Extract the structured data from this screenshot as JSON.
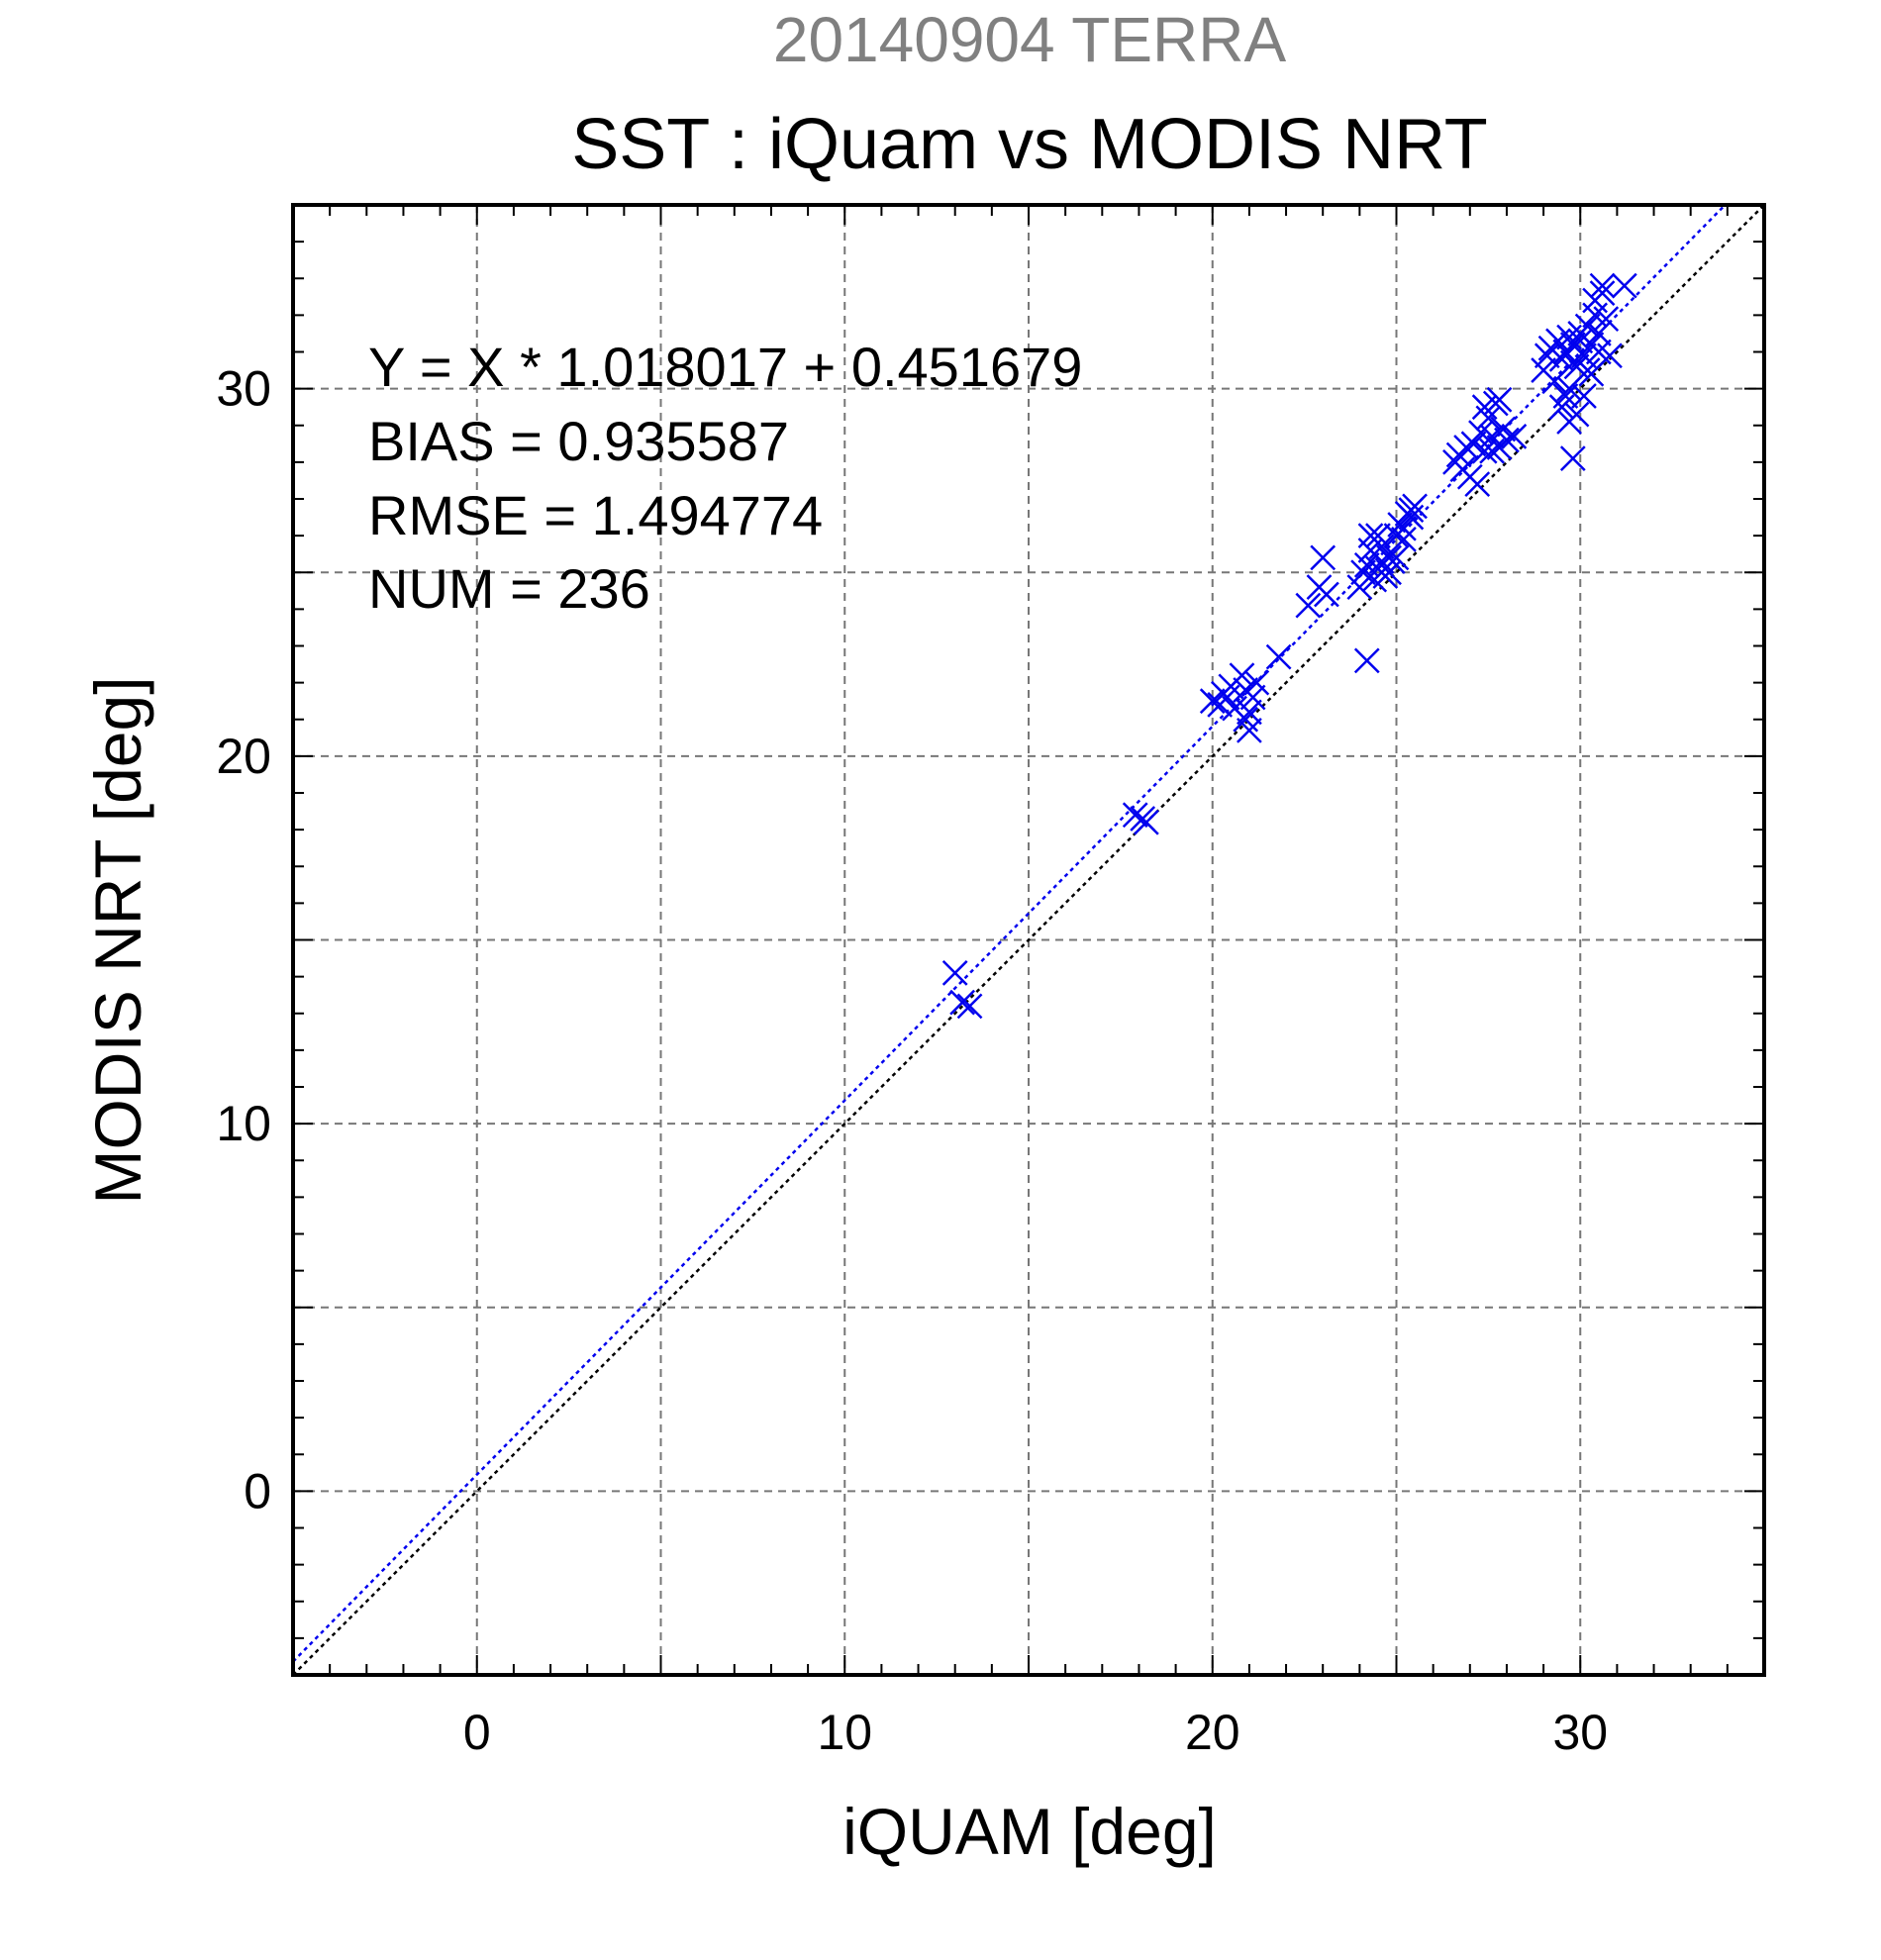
{
  "chart_data": {
    "type": "scatter",
    "supertitle": "20140904 TERRA",
    "title": "SST : iQuam vs MODIS NRT",
    "xlabel": "iQUAM [deg]",
    "ylabel": "MODIS NRT [deg]",
    "xlim": [
      -5,
      35
    ],
    "ylim": [
      -5,
      35
    ],
    "x_ticks": [
      0,
      10,
      20,
      30
    ],
    "y_ticks": [
      0,
      10,
      20,
      30
    ],
    "x_tick_labels": [
      "0",
      "10",
      "20",
      "30"
    ],
    "y_tick_labels": [
      "0",
      "10",
      "20",
      "30"
    ],
    "grid": true,
    "grid_step": 5,
    "marker": "x",
    "marker_color": "#0000ee",
    "stats": [
      "Y = X * 1.018017 + 0.451679",
      "BIAS = 0.935587",
      "RMSE = 1.494774",
      "NUM = 236"
    ],
    "fit_line": {
      "slope": 1.018017,
      "intercept": 0.451679,
      "color": "#0000ee"
    },
    "identity_line": {
      "slope": 1,
      "intercept": 0,
      "color": "#000000"
    },
    "series": [
      {
        "x": [
          13.0,
          13.2,
          13.4,
          17.9,
          18.1,
          18.2,
          20.0,
          20.2,
          20.3,
          20.4,
          20.5,
          20.6,
          20.8,
          20.9,
          21.0,
          21.1,
          21.2,
          20.9,
          21.0,
          21.8,
          22.6,
          22.9,
          23.0,
          23.1,
          24.0,
          24.1,
          24.2,
          24.3,
          24.4,
          24.5,
          24.6,
          24.7,
          24.8,
          24.2,
          24.3,
          24.5,
          24.6,
          24.9,
          25.0,
          25.1,
          25.2,
          25.3,
          25.4,
          25.5,
          25.0,
          25.2,
          25.4,
          24.8,
          26.6,
          26.7,
          26.8,
          26.9,
          27.0,
          27.1,
          27.2,
          27.3,
          27.4,
          27.5,
          27.6,
          27.7,
          27.8,
          27.9,
          28.0,
          28.2,
          27.4,
          27.6,
          27.8,
          29.0,
          29.1,
          29.2,
          29.3,
          29.4,
          29.5,
          29.6,
          29.7,
          29.8,
          29.9,
          30.0,
          30.1,
          30.2,
          30.3,
          30.4,
          30.5,
          30.6,
          30.7,
          30.8,
          29.5,
          29.7,
          29.9,
          30.1,
          30.3,
          29.6,
          29.8,
          30.0,
          30.2,
          29.8,
          30.4,
          30.6,
          30.5,
          31.2,
          29.7,
          29.6
        ],
        "y": [
          14.1,
          13.3,
          13.2,
          18.4,
          18.3,
          18.2,
          21.5,
          21.4,
          21.7,
          21.6,
          21.9,
          21.3,
          22.2,
          21.0,
          20.7,
          21.6,
          22.0,
          21.8,
          21.2,
          22.7,
          24.1,
          24.6,
          25.4,
          24.4,
          24.6,
          25.0,
          25.2,
          25.6,
          24.8,
          25.1,
          25.3,
          24.9,
          25.4,
          22.6,
          26.0,
          26.0,
          25.7,
          25.3,
          26.0,
          26.3,
          25.9,
          26.6,
          26.7,
          26.8,
          25.4,
          26.2,
          26.5,
          25.0,
          28.0,
          28.2,
          27.8,
          28.4,
          27.6,
          28.5,
          27.4,
          28.8,
          28.3,
          29.2,
          28.7,
          29.6,
          28.4,
          28.9,
          28.6,
          28.7,
          29.5,
          28.3,
          29.7,
          30.5,
          30.9,
          31.1,
          30.2,
          31.3,
          30.8,
          31.0,
          31.4,
          31.2,
          30.6,
          31.5,
          30.9,
          31.7,
          31.2,
          32.4,
          31.0,
          32.6,
          31.9,
          30.9,
          29.5,
          30.0,
          29.3,
          29.8,
          30.4,
          31.0,
          30.7,
          31.3,
          30.5,
          28.1,
          32.0,
          32.8,
          31.5,
          32.8,
          29.1,
          29.8
        ]
      }
    ]
  }
}
